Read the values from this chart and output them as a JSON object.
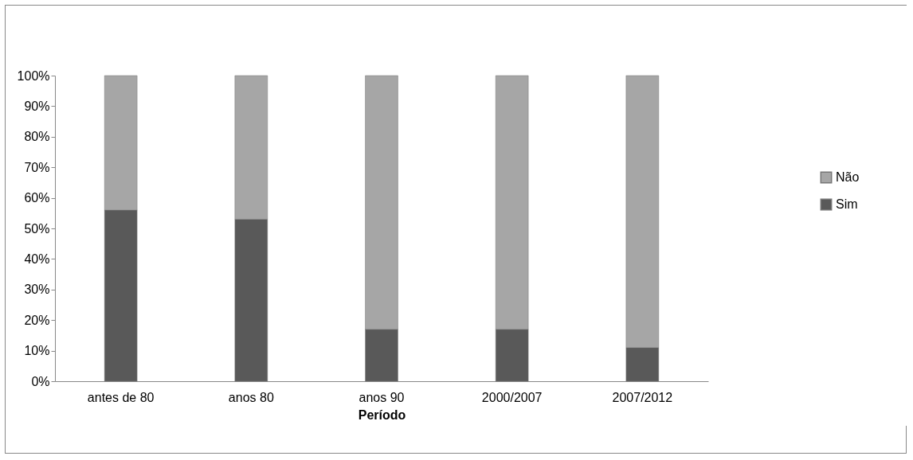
{
  "chart_data": {
    "type": "bar",
    "stacked": true,
    "xlabel": "Período",
    "categories": [
      "antes de 80",
      "anos 80",
      "anos 90",
      "2000/2007",
      "2007/2012"
    ],
    "series": [
      {
        "name": "Sim",
        "color": "#595959",
        "values": [
          56,
          53,
          17,
          17,
          11
        ]
      },
      {
        "name": "Não",
        "color": "#a6a6a6",
        "values": [
          44,
          47,
          83,
          83,
          89
        ]
      }
    ],
    "ylim": [
      0,
      100
    ],
    "yticks": [
      {
        "value": 0,
        "label": "0%"
      },
      {
        "value": 10,
        "label": "10%"
      },
      {
        "value": 20,
        "label": "20%"
      },
      {
        "value": 30,
        "label": "30%"
      },
      {
        "value": 40,
        "label": "40%"
      },
      {
        "value": 50,
        "label": "50%"
      },
      {
        "value": 60,
        "label": "60%"
      },
      {
        "value": 70,
        "label": "70%"
      },
      {
        "value": 80,
        "label": "80%"
      },
      {
        "value": 90,
        "label": "90%"
      },
      {
        "value": 100,
        "label": "100%"
      }
    ],
    "grid": false,
    "legend": "right"
  }
}
